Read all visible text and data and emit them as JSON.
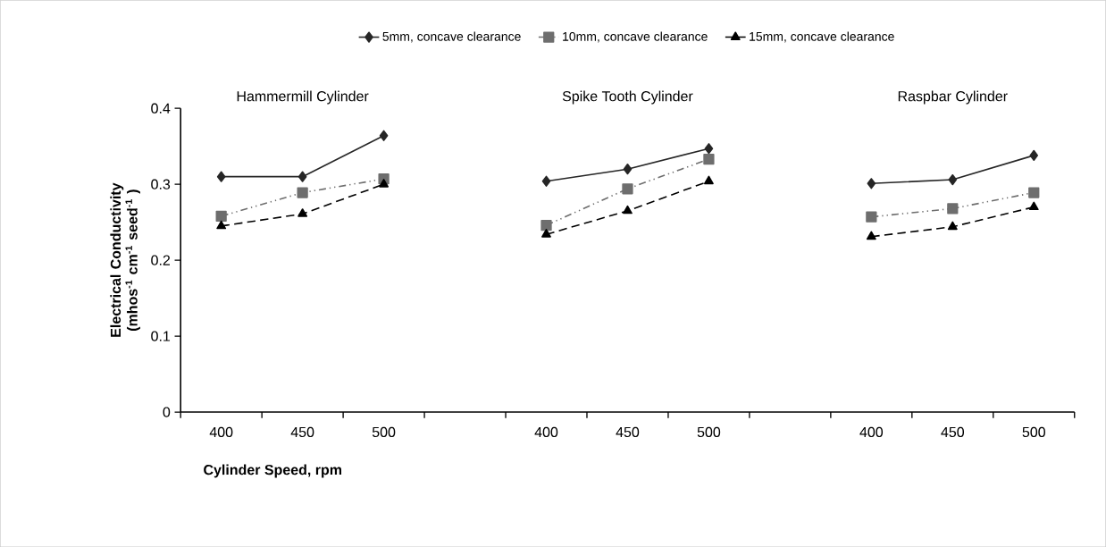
{
  "chart_data": {
    "type": "line",
    "xlabel": "Cylinder Speed, rpm",
    "ylabel": "Electrical Conductivity (mhos$^{-1}$ cm$^{-1}$ seed$^{-1}$ )",
    "categories": [
      "400",
      "450",
      "500",
      null,
      "400",
      "450",
      "500",
      null,
      "400",
      "450",
      "500"
    ],
    "series": [
      {
        "name": "5mm, concave clearance",
        "color": "#262626",
        "marker": "diamond",
        "line_style": "solid",
        "values": [
          0.31,
          0.31,
          0.364,
          null,
          0.304,
          0.32,
          0.347,
          null,
          0.301,
          0.306,
          0.338
        ]
      },
      {
        "name": "10mm, concave clearance",
        "color": "#6e6e6e",
        "marker": "square",
        "line_style": "dashdot",
        "values": [
          0.258,
          0.289,
          0.307,
          null,
          0.246,
          0.294,
          0.333,
          null,
          0.257,
          0.268,
          0.289
        ]
      },
      {
        "name": "15mm, concave clearance",
        "color": "#000000",
        "marker": "triangle",
        "line_style": "dashed",
        "values": [
          0.245,
          0.261,
          0.3,
          null,
          0.234,
          0.265,
          0.304,
          null,
          0.231,
          0.244,
          0.27
        ]
      }
    ],
    "annotations": [
      "Hammermill  Cylinder",
      "Spike Tooth  Cylinder",
      "Raspbar Cylinder"
    ],
    "ylim": [
      0,
      0.4
    ],
    "yticks": [
      0,
      0.1,
      0.2,
      0.3,
      0.4
    ],
    "grid": false,
    "legend": "top"
  }
}
